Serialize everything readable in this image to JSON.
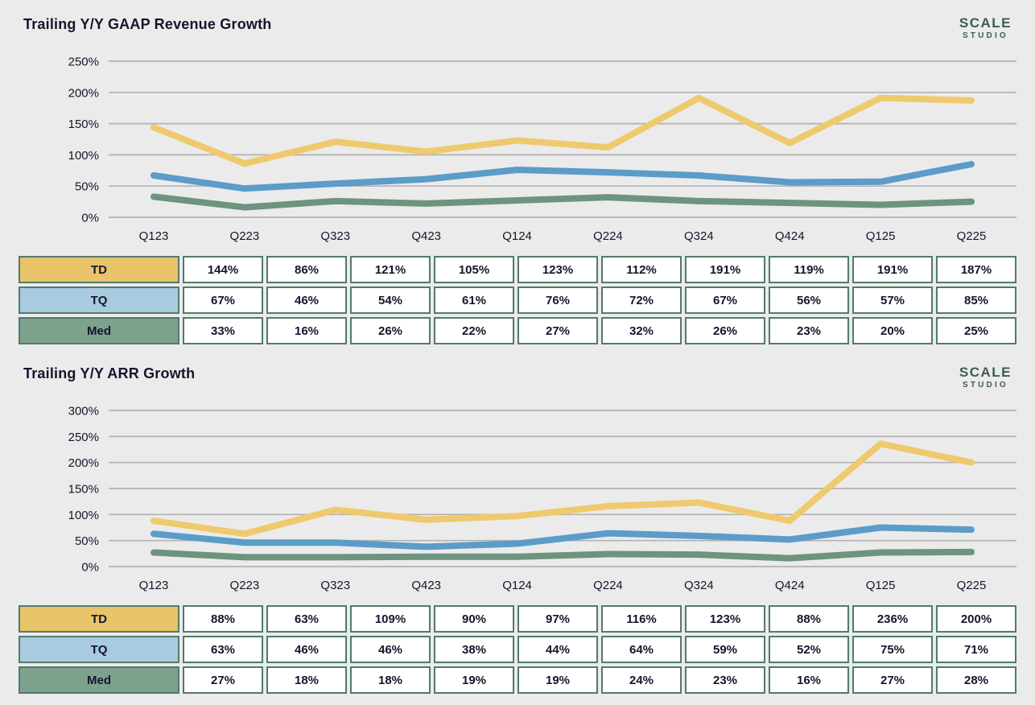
{
  "page": {
    "background": "#EBEBEB"
  },
  "logo": {
    "line1": "SCALE",
    "line2": "STUDIO",
    "color": "#3E5C4F"
  },
  "colors": {
    "text_dark": "#15152D",
    "grid": "#B2B2B2",
    "table_border": "#527A6B",
    "line_td": "#EFC96E",
    "line_tq": "#5B9CC8",
    "line_med": "#6E937F",
    "header_td": "#E8C369",
    "header_tq": "#A9CBE0",
    "header_med": "#7DA18D"
  },
  "chart_data": [
    {
      "type": "line",
      "title": "Trailing Y/Y GAAP Revenue Growth",
      "categories": [
        "Q123",
        "Q223",
        "Q323",
        "Q423",
        "Q124",
        "Q224",
        "Q324",
        "Q424",
        "Q125",
        "Q225"
      ],
      "series": [
        {
          "name": "TD",
          "color": "#EFC96E",
          "header_color": "#E8C369",
          "values": [
            144,
            86,
            121,
            105,
            123,
            112,
            191,
            119,
            191,
            187
          ]
        },
        {
          "name": "TQ",
          "color": "#5B9CC8",
          "header_color": "#A9CBE0",
          "values": [
            67,
            46,
            54,
            61,
            76,
            72,
            67,
            56,
            57,
            85
          ]
        },
        {
          "name": "Med",
          "color": "#6E937F",
          "header_color": "#7DA18D",
          "values": [
            33,
            16,
            26,
            22,
            27,
            32,
            26,
            23,
            20,
            25
          ]
        }
      ],
      "ylim": [
        0,
        250
      ],
      "ytick_step": 50,
      "unit": "%",
      "grid": true,
      "legend_position": "table-below"
    },
    {
      "type": "line",
      "title": "Trailing Y/Y ARR Growth",
      "categories": [
        "Q123",
        "Q223",
        "Q323",
        "Q423",
        "Q124",
        "Q224",
        "Q324",
        "Q424",
        "Q125",
        "Q225"
      ],
      "series": [
        {
          "name": "TD",
          "color": "#EFC96E",
          "header_color": "#E8C369",
          "values": [
            88,
            63,
            109,
            90,
            97,
            116,
            123,
            88,
            236,
            200
          ]
        },
        {
          "name": "TQ",
          "color": "#5B9CC8",
          "header_color": "#A9CBE0",
          "values": [
            63,
            46,
            46,
            38,
            44,
            64,
            59,
            52,
            75,
            71
          ]
        },
        {
          "name": "Med",
          "color": "#6E937F",
          "header_color": "#7DA18D",
          "values": [
            27,
            18,
            18,
            19,
            19,
            24,
            23,
            16,
            27,
            28
          ]
        }
      ],
      "ylim": [
        0,
        300
      ],
      "ytick_step": 50,
      "unit": "%",
      "grid": true,
      "legend_position": "table-below"
    }
  ]
}
